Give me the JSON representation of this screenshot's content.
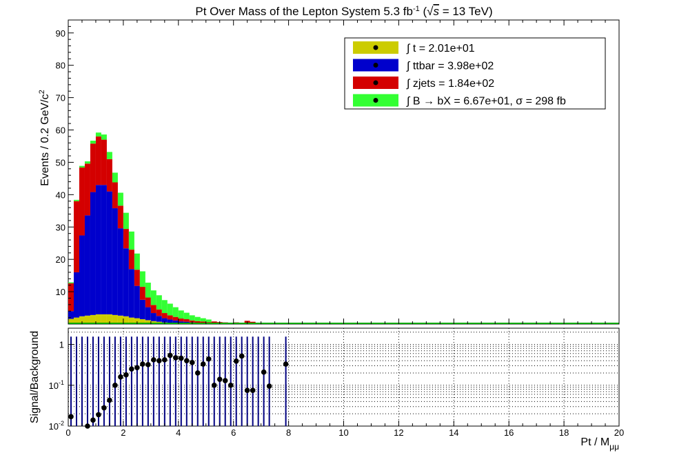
{
  "chart_data": [
    {
      "type": "bar",
      "stacked": true,
      "title_main": "Pt Over Mass of the Lepton System 5.3 fb",
      "title_sup": "-1",
      "title_sqrt_s": "s",
      "title_energy": " = 13 TeV)",
      "ylabel_main": "Events / 0.2 GeV/c",
      "ylabel_sup": "2",
      "xlim": [
        0,
        20
      ],
      "ylim": [
        0,
        94
      ],
      "bin_width": 0.2,
      "yticks": [
        10,
        20,
        30,
        40,
        50,
        60,
        70,
        80,
        90
      ],
      "legend_position": "top-right",
      "series": [
        {
          "name": "t = 2.01e+01",
          "color": "#cccc00",
          "values": [
            1.6,
            2.0,
            2.4,
            2.6,
            2.8,
            3.0,
            3.0,
            3.0,
            2.8,
            2.6,
            2.4,
            2.0,
            1.8,
            1.5,
            1.2,
            0.9,
            0.7,
            0.5,
            0.4,
            0.3,
            0.2,
            0.2,
            0.1,
            0.1,
            0.1,
            0.1
          ]
        },
        {
          "name": "ttbar = 3.98e+02",
          "color": "#0000cc",
          "values": [
            2.4,
            14,
            25,
            31,
            38,
            40,
            40,
            38,
            33,
            27,
            21,
            15,
            10,
            6,
            4,
            2.5,
            1.8,
            1.3,
            1.0,
            0.8,
            0.6,
            0.5,
            0.4,
            0.3,
            0.3,
            0.2
          ]
        },
        {
          "name": "zjets = 1.84e+02",
          "color": "#d40000",
          "values": [
            8.6,
            22,
            21,
            16,
            15,
            15,
            14,
            10,
            8,
            7,
            6,
            6,
            5,
            4,
            3,
            2.5,
            2,
            1.6,
            1.3,
            1.1,
            0.9,
            0.8,
            0.6,
            0.5,
            0.4,
            0.3
          ]
        },
        {
          "name": "B → bX = 6.67e+01, σ = 298 fb",
          "color": "#33ff33",
          "values": [
            0.3,
            0.4,
            0.5,
            0.7,
            0.9,
            1.2,
            1.6,
            2.2,
            3.0,
            4.0,
            5.0,
            5.6,
            5.0,
            4.8,
            4.6,
            4.5,
            4.4,
            4.0,
            3.6,
            3.0,
            2.5,
            2.0,
            1.6,
            1.3,
            1.0,
            0.8
          ]
        }
      ],
      "tail": [
        {
          "x": 5.2,
          "total": 0.8
        },
        {
          "x": 5.4,
          "total": 0.6
        },
        {
          "x": 5.6,
          "total": 0.5
        },
        {
          "x": 5.8,
          "total": 0.4
        },
        {
          "x": 6.0,
          "total": 0.5
        },
        {
          "x": 6.4,
          "total": 1.0
        },
        {
          "x": 6.6,
          "total": 0.7
        },
        {
          "x": 7.2,
          "total": 0.3
        },
        {
          "x": 7.4,
          "total": 0.4
        },
        {
          "x": 8.8,
          "total": 0.3
        }
      ]
    },
    {
      "type": "scatter",
      "ylabel": "Signal/Background",
      "xlabel_main": "Pt / M",
      "xlabel_sub": "μμ",
      "yscale": "log",
      "xlim": [
        0,
        20
      ],
      "ylim": [
        0.01,
        2.5
      ],
      "yticks": [
        {
          "v": 0.01,
          "b": "10",
          "e": "-2"
        },
        {
          "v": 0.1,
          "b": "10",
          "e": "-1"
        },
        {
          "v": 1,
          "b": "1",
          "e": ""
        }
      ],
      "xticks": [
        0,
        2,
        4,
        6,
        8,
        10,
        12,
        14,
        16,
        18,
        20
      ],
      "grid": true,
      "points": [
        {
          "x": 0.1,
          "y": 0.017
        },
        {
          "x": 0.7,
          "y": 0.01
        },
        {
          "x": 0.9,
          "y": 0.014
        },
        {
          "x": 1.1,
          "y": 0.019
        },
        {
          "x": 1.3,
          "y": 0.028
        },
        {
          "x": 1.5,
          "y": 0.043
        },
        {
          "x": 1.7,
          "y": 0.1
        },
        {
          "x": 1.9,
          "y": 0.16
        },
        {
          "x": 2.1,
          "y": 0.18
        },
        {
          "x": 2.3,
          "y": 0.25
        },
        {
          "x": 2.5,
          "y": 0.27
        },
        {
          "x": 2.7,
          "y": 0.33
        },
        {
          "x": 2.9,
          "y": 0.32
        },
        {
          "x": 3.1,
          "y": 0.42
        },
        {
          "x": 3.3,
          "y": 0.4
        },
        {
          "x": 3.5,
          "y": 0.42
        },
        {
          "x": 3.7,
          "y": 0.54
        },
        {
          "x": 3.9,
          "y": 0.47
        },
        {
          "x": 4.1,
          "y": 0.46
        },
        {
          "x": 4.3,
          "y": 0.4
        },
        {
          "x": 4.5,
          "y": 0.36
        },
        {
          "x": 4.7,
          "y": 0.2
        },
        {
          "x": 4.9,
          "y": 0.33
        },
        {
          "x": 5.1,
          "y": 0.44
        },
        {
          "x": 5.3,
          "y": 0.1
        },
        {
          "x": 5.5,
          "y": 0.14
        },
        {
          "x": 5.7,
          "y": 0.13
        },
        {
          "x": 5.9,
          "y": 0.1
        },
        {
          "x": 6.1,
          "y": 0.39
        },
        {
          "x": 6.3,
          "y": 0.52
        },
        {
          "x": 6.5,
          "y": 0.075
        },
        {
          "x": 6.7,
          "y": 0.075
        },
        {
          "x": 7.1,
          "y": 0.21
        },
        {
          "x": 7.3,
          "y": 0.095
        },
        {
          "x": 7.9,
          "y": 0.33
        }
      ],
      "errbar_x": [
        0.1,
        0.3,
        0.5,
        0.7,
        0.9,
        1.1,
        1.3,
        1.5,
        1.7,
        1.9,
        2.1,
        2.3,
        2.5,
        2.7,
        2.9,
        3.1,
        3.3,
        3.5,
        3.7,
        3.9,
        4.1,
        4.3,
        4.5,
        4.7,
        4.9,
        5.1,
        5.3,
        5.5,
        5.7,
        5.9,
        6.1,
        6.3,
        6.5,
        6.7,
        6.9,
        7.1,
        7.3,
        7.9
      ],
      "errbar_color": "#000080",
      "point_color": "#000000"
    }
  ],
  "x_axis_title_main": "Pt / M",
  "x_axis_title_sub": "μμ"
}
